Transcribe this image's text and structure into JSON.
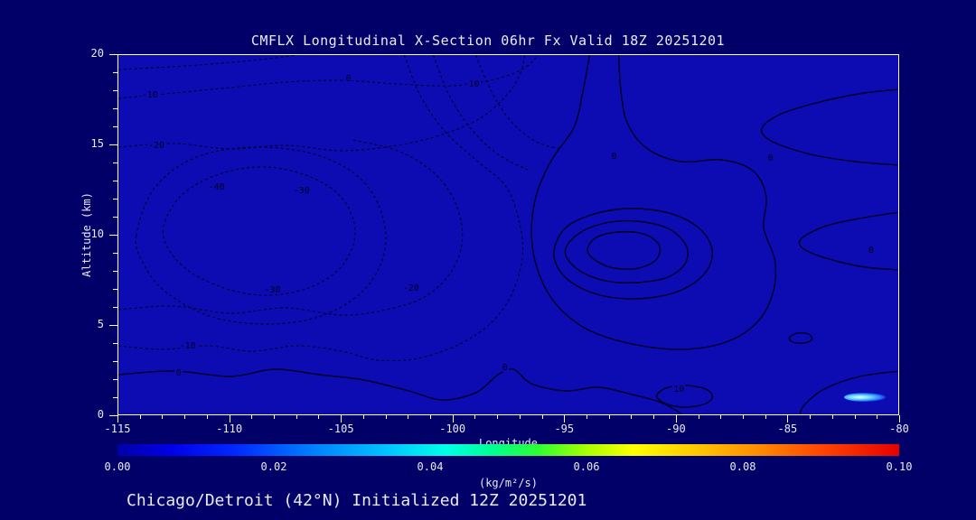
{
  "colors": {
    "outer_bg": "#000068",
    "plot_bg": "#0C0CB2",
    "frame": "#FFFFFF",
    "text": "#EAEAF8",
    "contour": "#000022"
  },
  "chart_data": {
    "type": "contour",
    "title": "CMFLX Longitudinal X-Section 06hr  Fx Valid 18Z 20251201",
    "xlabel": "Longitude",
    "ylabel": "Altitude (km)",
    "caption": "Chicago/Detroit (42°N) Initialized 12Z 20251201",
    "xlim": [
      -115,
      -80
    ],
    "ylim": [
      0,
      20
    ],
    "xticks": [
      -115,
      -110,
      -105,
      -100,
      -95,
      -90,
      -85,
      -80
    ],
    "yticks": [
      0,
      5,
      10,
      15,
      20
    ],
    "x_minor_step": 1,
    "y_minor_step": 1,
    "contour_interval_note": "dashed = negative values, solid = zero and positive values",
    "hotspot": {
      "lon": -81.6,
      "alt": 1.05
    },
    "colorbar": {
      "min_value": 0.0,
      "max_value": 0.1,
      "ticks": [
        "0.00",
        "0.02",
        "0.04",
        "0.06",
        "0.08",
        "0.10"
      ],
      "tick_values": [
        0,
        0.02,
        0.04,
        0.06,
        0.08,
        0.1
      ],
      "units": "(kg/m²/s)",
      "gradient": [
        [
          "0%",
          "#0000A8"
        ],
        [
          "7%",
          "#0000E8"
        ],
        [
          "15%",
          "#0028FF"
        ],
        [
          "25%",
          "#0080FF"
        ],
        [
          "35%",
          "#00C8FF"
        ],
        [
          "42%",
          "#00FFE8"
        ],
        [
          "48%",
          "#00FF90"
        ],
        [
          "54%",
          "#30FF30"
        ],
        [
          "60%",
          "#A8FF00"
        ],
        [
          "66%",
          "#FFFF00"
        ],
        [
          "74%",
          "#FFC800"
        ],
        [
          "82%",
          "#FF8C00"
        ],
        [
          "90%",
          "#FF4600"
        ],
        [
          "100%",
          "#E60000"
        ]
      ]
    },
    "labels": [
      {
        "text": "-10",
        "lon": -113.6,
        "alt": 17.8
      },
      {
        "text": "0",
        "lon": -104.7,
        "alt": 18.7
      },
      {
        "text": "-10",
        "lon": -99.2,
        "alt": 18.4
      },
      {
        "text": "-20",
        "lon": -113.3,
        "alt": 15.0
      },
      {
        "text": "-40",
        "lon": -110.6,
        "alt": 12.7
      },
      {
        "text": "-30",
        "lon": -106.8,
        "alt": 12.5
      },
      {
        "text": "-30",
        "lon": -108.1,
        "alt": 7.0
      },
      {
        "text": "-20",
        "lon": -101.9,
        "alt": 7.1
      },
      {
        "text": "-10",
        "lon": -111.9,
        "alt": 3.9
      },
      {
        "text": "0",
        "lon": -112.3,
        "alt": 2.4
      },
      {
        "text": "0",
        "lon": -97.7,
        "alt": 2.7
      },
      {
        "text": "10",
        "lon": -89.9,
        "alt": 1.5
      },
      {
        "text": "0",
        "lon": -92.8,
        "alt": 14.4
      },
      {
        "text": "0",
        "lon": -85.8,
        "alt": 14.3
      },
      {
        "text": "0",
        "lon": -81.3,
        "alt": 9.2
      }
    ],
    "contours": [
      {
        "level": "-10",
        "style": "dashed",
        "closed": false,
        "points": [
          [
            -115,
            17.6
          ],
          [
            -112.5,
            17.9
          ],
          [
            -110,
            18.2
          ],
          [
            -107.5,
            18.5
          ],
          [
            -105,
            18.6
          ],
          [
            -102.5,
            18.4
          ],
          [
            -100,
            18.3
          ],
          [
            -98,
            18.7
          ],
          [
            -96.8,
            19.3
          ],
          [
            -96.2,
            20
          ]
        ]
      },
      {
        "level": "-10",
        "style": "dashed",
        "closed": false,
        "points": [
          [
            -115,
            19.2
          ],
          [
            -112,
            19.4
          ],
          [
            -109,
            19.7
          ],
          [
            -107,
            20
          ]
        ]
      },
      {
        "level": "-20",
        "style": "dashed",
        "closed": false,
        "points": [
          [
            -115,
            14.9
          ],
          [
            -112.5,
            15.1
          ],
          [
            -110,
            14.8
          ],
          [
            -107.5,
            15.0
          ],
          [
            -105,
            14.7
          ],
          [
            -102.5,
            15.0
          ],
          [
            -100.5,
            15.6
          ],
          [
            -98.8,
            16.5
          ],
          [
            -97.6,
            17.8
          ],
          [
            -97,
            19
          ],
          [
            -96.8,
            20
          ]
        ]
      },
      {
        "level": "-40",
        "style": "dashed",
        "closed": true,
        "points": [
          [
            -113,
            10.2
          ],
          [
            -112.2,
            12.2
          ],
          [
            -110.5,
            13.4
          ],
          [
            -108.5,
            13.8
          ],
          [
            -106.5,
            13.3
          ],
          [
            -105,
            12.1
          ],
          [
            -104.4,
            10.2
          ],
          [
            -105,
            8.3
          ],
          [
            -106.5,
            7.1
          ],
          [
            -108.5,
            6.7
          ],
          [
            -110.5,
            7.2
          ],
          [
            -112.2,
            8.4
          ]
        ]
      },
      {
        "level": "-30",
        "style": "dashed",
        "closed": true,
        "points": [
          [
            -114.2,
            10.0
          ],
          [
            -113.4,
            12.6
          ],
          [
            -111.6,
            14.3
          ],
          [
            -109,
            14.9
          ],
          [
            -106.2,
            14.5
          ],
          [
            -104.2,
            13.2
          ],
          [
            -103.2,
            11.2
          ],
          [
            -103.1,
            9.0
          ],
          [
            -104,
            7.0
          ],
          [
            -105.8,
            5.6
          ],
          [
            -108.2,
            5.1
          ],
          [
            -110.8,
            5.5
          ],
          [
            -112.9,
            6.9
          ],
          [
            -113.9,
            8.5
          ]
        ]
      },
      {
        "level": "-20",
        "style": "dashed",
        "closed": false,
        "points": [
          [
            -115,
            5.9
          ],
          [
            -112.5,
            6.1
          ],
          [
            -110,
            5.7
          ],
          [
            -107.5,
            6.0
          ],
          [
            -105,
            5.6
          ],
          [
            -103,
            5.9
          ],
          [
            -101.3,
            6.6
          ],
          [
            -100.1,
            8.0
          ],
          [
            -99.6,
            9.8
          ],
          [
            -99.9,
            11.8
          ],
          [
            -100.9,
            13.5
          ],
          [
            -102.5,
            14.7
          ],
          [
            -104.5,
            15.3
          ]
        ]
      },
      {
        "level": "-10",
        "style": "dashed",
        "closed": false,
        "points": [
          [
            -102.2,
            20
          ],
          [
            -101.5,
            17.8
          ],
          [
            -100.4,
            15.8
          ],
          [
            -99.0,
            14.2
          ],
          [
            -97.7,
            12.8
          ],
          [
            -97.1,
            11
          ],
          [
            -96.9,
            9
          ],
          [
            -97.3,
            7
          ],
          [
            -98.2,
            5.3
          ],
          [
            -99.7,
            4.0
          ],
          [
            -101.6,
            3.2
          ],
          [
            -103.4,
            3.1
          ],
          [
            -105,
            3.6
          ],
          [
            -107,
            3.9
          ],
          [
            -109,
            3.6
          ],
          [
            -111,
            3.9
          ],
          [
            -113,
            3.7
          ],
          [
            -115,
            3.9
          ]
        ]
      },
      {
        "level": "-10",
        "style": "dashed",
        "closed": false,
        "points": [
          [
            -100.9,
            20
          ],
          [
            -100.2,
            17.8
          ],
          [
            -99.2,
            15.9
          ],
          [
            -98.0,
            14.5
          ],
          [
            -96.6,
            13.6
          ]
        ]
      },
      {
        "level": "-10",
        "style": "dashed",
        "closed": false,
        "points": [
          [
            -99.0,
            20
          ],
          [
            -98.3,
            18
          ],
          [
            -97.4,
            16.3
          ],
          [
            -96.3,
            15.2
          ],
          [
            -95.2,
            14.8
          ]
        ]
      },
      {
        "level": "0",
        "style": "solid",
        "closed": false,
        "points": [
          [
            -93.9,
            20
          ],
          [
            -94.2,
            18
          ],
          [
            -94.6,
            16
          ],
          [
            -95.6,
            14.2
          ],
          [
            -96.3,
            12.2
          ],
          [
            -96.5,
            10
          ],
          [
            -96.2,
            8
          ],
          [
            -95.4,
            6.2
          ],
          [
            -94,
            4.8
          ],
          [
            -92,
            4.0
          ],
          [
            -89.8,
            3.7
          ],
          [
            -87.8,
            4.1
          ],
          [
            -86.4,
            5.2
          ],
          [
            -85.7,
            6.8
          ],
          [
            -85.6,
            8.6
          ],
          [
            -86.1,
            10.4
          ],
          [
            -86.0,
            12.2
          ],
          [
            -86.6,
            13.6
          ],
          [
            -88,
            14.2
          ],
          [
            -89.8,
            14.1
          ],
          [
            -91.3,
            14.8
          ],
          [
            -92.2,
            16.2
          ],
          [
            -92.5,
            18
          ],
          [
            -92.6,
            20
          ]
        ]
      },
      {
        "level": "10",
        "style": "solid",
        "closed": true,
        "points": [
          [
            -95.5,
            9.0
          ],
          [
            -95.0,
            10.4
          ],
          [
            -93.7,
            11.2
          ],
          [
            -92,
            11.5
          ],
          [
            -90.2,
            11.2
          ],
          [
            -88.9,
            10.3
          ],
          [
            -88.4,
            9.0
          ],
          [
            -88.9,
            7.7
          ],
          [
            -90.2,
            6.8
          ],
          [
            -92,
            6.5
          ],
          [
            -93.7,
            6.8
          ],
          [
            -95.0,
            7.7
          ]
        ]
      },
      {
        "level": "20",
        "style": "solid",
        "closed": true,
        "points": [
          [
            -95.0,
            9.1
          ],
          [
            -94.4,
            10.1
          ],
          [
            -93.2,
            10.7
          ],
          [
            -91.8,
            10.8
          ],
          [
            -90.4,
            10.4
          ],
          [
            -89.6,
            9.5
          ],
          [
            -89.6,
            8.5
          ],
          [
            -90.4,
            7.7
          ],
          [
            -91.8,
            7.4
          ],
          [
            -93.2,
            7.5
          ],
          [
            -94.4,
            8.1
          ]
        ]
      },
      {
        "level": "30",
        "style": "solid",
        "closed": true,
        "points": [
          [
            -94.0,
            9.2
          ],
          [
            -93.6,
            9.9
          ],
          [
            -92.6,
            10.2
          ],
          [
            -91.5,
            10.1
          ],
          [
            -90.8,
            9.5
          ],
          [
            -90.9,
            8.7
          ],
          [
            -91.7,
            8.2
          ],
          [
            -92.8,
            8.2
          ],
          [
            -93.6,
            8.6
          ]
        ]
      },
      {
        "level": "0",
        "style": "solid",
        "closed": false,
        "points": [
          [
            -115,
            2.3
          ],
          [
            -112.5,
            2.5
          ],
          [
            -110,
            2.2
          ],
          [
            -108,
            2.6
          ],
          [
            -106,
            2.3
          ],
          [
            -104,
            2.0
          ],
          [
            -102,
            1.4
          ],
          [
            -100.5,
            0.9
          ],
          [
            -99,
            1.3
          ],
          [
            -98,
            2.3
          ],
          [
            -97.3,
            2.6
          ],
          [
            -96.5,
            1.8
          ],
          [
            -95,
            1.4
          ],
          [
            -93.5,
            1.6
          ],
          [
            -92,
            1.2
          ],
          [
            -90.8,
            0.8
          ],
          [
            -90,
            0.3
          ],
          [
            -89.7,
            0
          ]
        ]
      },
      {
        "level": "10",
        "style": "solid",
        "closed": true,
        "points": [
          [
            -90.9,
            1.1
          ],
          [
            -90.5,
            1.55
          ],
          [
            -89.6,
            1.7
          ],
          [
            -88.7,
            1.5
          ],
          [
            -88.4,
            1.05
          ],
          [
            -88.8,
            0.65
          ],
          [
            -89.7,
            0.5
          ],
          [
            -90.5,
            0.7
          ]
        ]
      },
      {
        "level": "0",
        "style": "solid",
        "closed": true,
        "points": [
          [
            -84.95,
            4.35
          ],
          [
            -84.6,
            4.6
          ],
          [
            -84.1,
            4.55
          ],
          [
            -83.95,
            4.25
          ],
          [
            -84.3,
            4.05
          ],
          [
            -84.8,
            4.1
          ]
        ]
      },
      {
        "level": "0",
        "style": "solid",
        "closed": false,
        "points": [
          [
            -80,
            13.9
          ],
          [
            -82,
            14.1
          ],
          [
            -84,
            14.5
          ],
          [
            -85.7,
            15.2
          ],
          [
            -86.2,
            15.9
          ],
          [
            -85.4,
            16.7
          ],
          [
            -83.6,
            17.4
          ],
          [
            -81.6,
            17.9
          ],
          [
            -80,
            18.1
          ]
        ]
      },
      {
        "level": "0",
        "style": "solid",
        "closed": false,
        "points": [
          [
            -80,
            8.1
          ],
          [
            -81.8,
            8.3
          ],
          [
            -83.9,
            9.0
          ],
          [
            -84.5,
            9.7
          ],
          [
            -83.4,
            10.5
          ],
          [
            -81.6,
            11.0
          ],
          [
            -80,
            11.3
          ]
        ]
      },
      {
        "level": "0",
        "style": "solid",
        "closed": false,
        "points": [
          [
            -80,
            2.5
          ],
          [
            -81.8,
            2.2
          ],
          [
            -83.4,
            1.5
          ],
          [
            -84.3,
            0.6
          ],
          [
            -84.5,
            0
          ]
        ]
      }
    ]
  }
}
